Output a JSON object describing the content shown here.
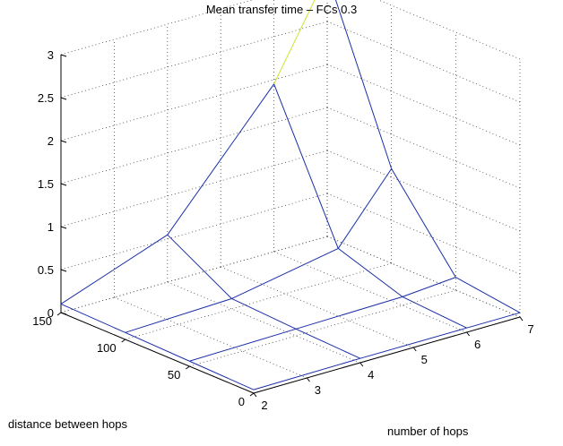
{
  "chart_data": {
    "type": "surface-mesh",
    "title": "Mean transfer time – FCs 0.3",
    "xlabel": "distance between hops",
    "ylabel": "number of hops",
    "zlabel": "",
    "x_values": [
      0,
      50,
      100,
      150
    ],
    "y_values": [
      2,
      4,
      6,
      7
    ],
    "x_ticks": [
      "0",
      "50",
      "100",
      "150"
    ],
    "y_ticks": [
      "2",
      "3",
      "4",
      "5",
      "6",
      "7"
    ],
    "z_ticks": [
      "0",
      "0.5",
      "1",
      "1.5",
      "2",
      "2.5",
      "3"
    ],
    "xlim": [
      0,
      150
    ],
    "ylim": [
      2,
      7
    ],
    "zlim": [
      0,
      3
    ],
    "grid": true,
    "z_values": [
      [
        0.04,
        0.05,
        0.05,
        0.05
      ],
      [
        0.06,
        0.08,
        0.1,
        0.15
      ],
      [
        0.08,
        0.12,
        0.35,
        1.1
      ],
      [
        0.1,
        0.55,
        1.95,
        3.05
      ]
    ],
    "colors": {
      "mesh_low": "#1a2ea8",
      "mesh_high": "#c8e62a",
      "grid": "#444444",
      "axis": "#000000"
    }
  }
}
